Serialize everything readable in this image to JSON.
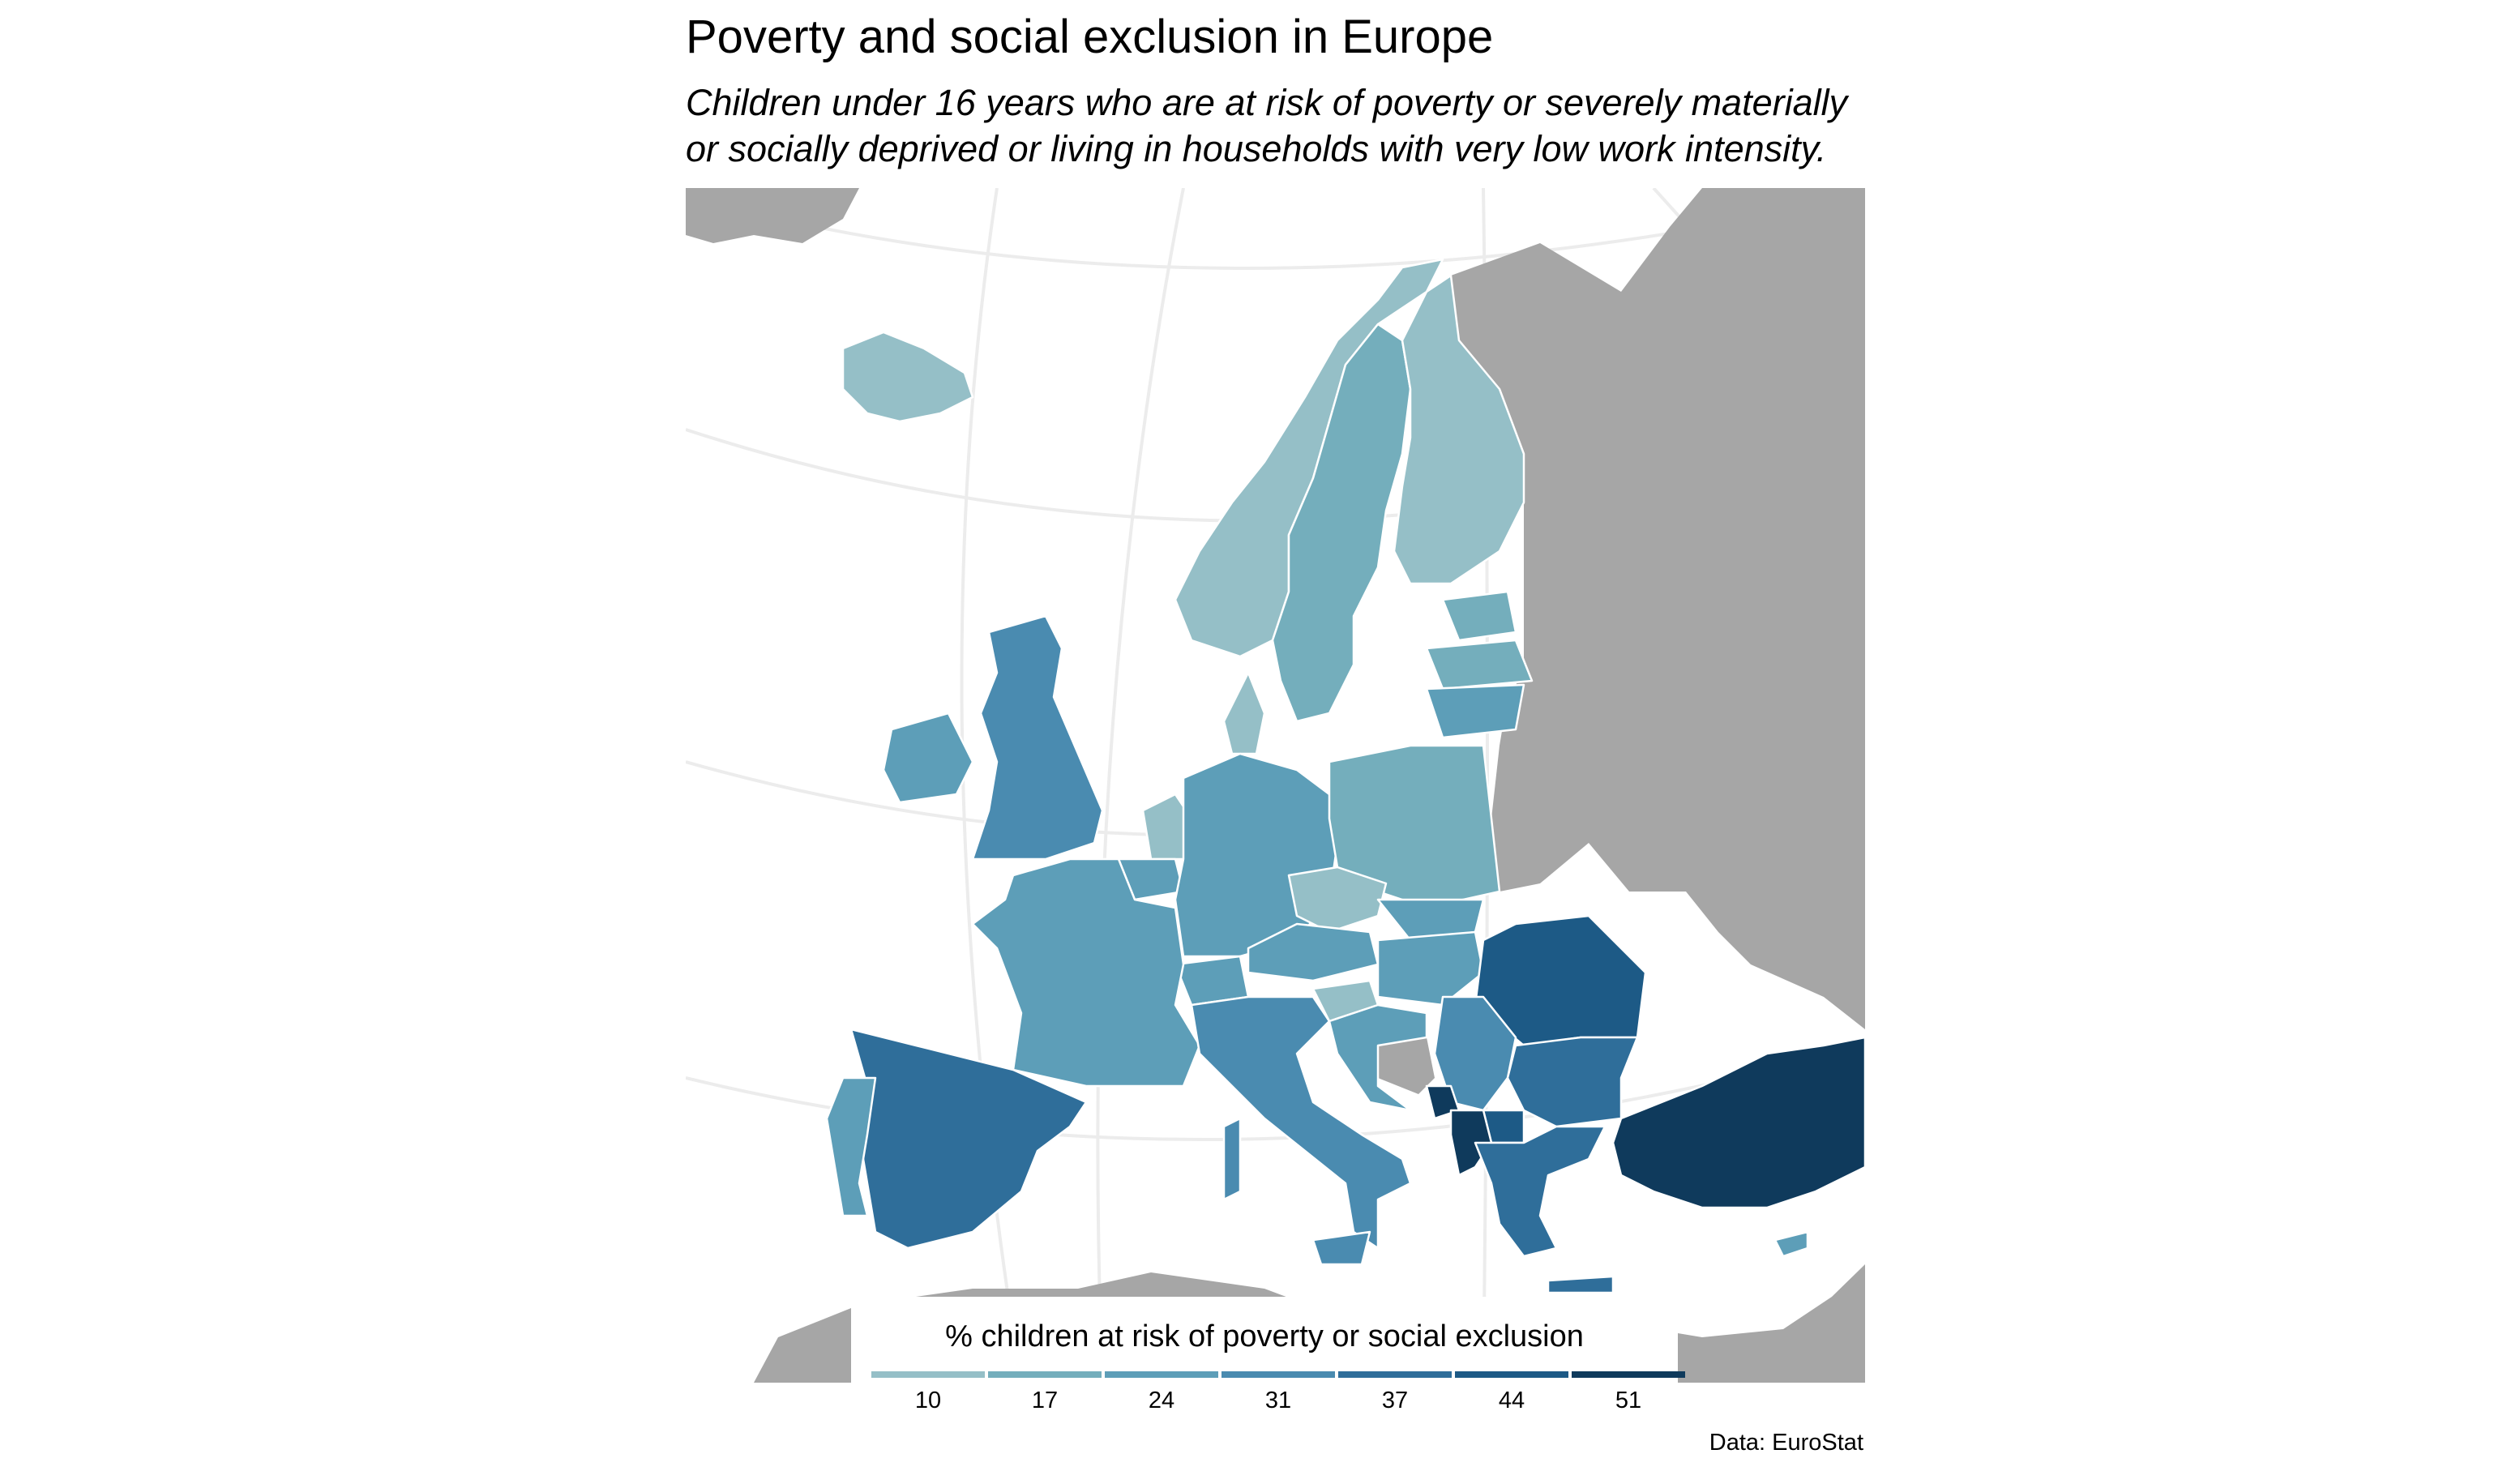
{
  "title": "Poverty and social exclusion in Europe",
  "subtitle_line1": "Children under 16 years who are at risk of poverty or severely materially",
  "subtitle_line2": "or socially deprived or living in households with very low work intensity.",
  "legend": {
    "title": "% children at risk of poverty or social exclusion",
    "ticks": [
      "10",
      "17",
      "24",
      "31",
      "37",
      "44",
      "51"
    ],
    "colors": [
      "#95bfc7",
      "#74aebc",
      "#5d9eb8",
      "#4a8bb0",
      "#2f6e9a",
      "#1d5a86",
      "#0f3a5c"
    ]
  },
  "source": "Data: EuroStat",
  "palette": {
    "no_data": "#a6a6a6",
    "border": "#ffffff",
    "graticule": "#ececec",
    "background": "#ffffff"
  },
  "countries": [
    {
      "name": "Iceland",
      "level": 0
    },
    {
      "name": "Norway",
      "level": 0
    },
    {
      "name": "Sweden",
      "level": 1
    },
    {
      "name": "Finland",
      "level": 0
    },
    {
      "name": "Estonia",
      "level": 1
    },
    {
      "name": "Latvia",
      "level": 1
    },
    {
      "name": "Lithuania",
      "level": 2
    },
    {
      "name": "Denmark",
      "level": 0
    },
    {
      "name": "United Kingdom",
      "level": 3
    },
    {
      "name": "Ireland",
      "level": 2
    },
    {
      "name": "Netherlands",
      "level": 0
    },
    {
      "name": "Belgium",
      "level": 2
    },
    {
      "name": "Germany",
      "level": 2
    },
    {
      "name": "Poland",
      "level": 1
    },
    {
      "name": "Czechia",
      "level": 0
    },
    {
      "name": "Slovakia",
      "level": 2
    },
    {
      "name": "Austria",
      "level": 2
    },
    {
      "name": "Switzerland",
      "level": 2
    },
    {
      "name": "Hungary",
      "level": 2
    },
    {
      "name": "Slovenia",
      "level": 0
    },
    {
      "name": "Croatia",
      "level": 2
    },
    {
      "name": "France",
      "level": 2
    },
    {
      "name": "Spain",
      "level": 4
    },
    {
      "name": "Portugal",
      "level": 2
    },
    {
      "name": "Italy",
      "level": 3
    },
    {
      "name": "Romania",
      "level": 5
    },
    {
      "name": "Serbia",
      "level": 3
    },
    {
      "name": "Bulgaria",
      "level": 4
    },
    {
      "name": "North Macedonia",
      "level": 5
    },
    {
      "name": "Montenegro",
      "level": 6
    },
    {
      "name": "Albania",
      "level": 6
    },
    {
      "name": "Greece",
      "level": 4
    },
    {
      "name": "Turkey",
      "level": 6
    },
    {
      "name": "Cyprus",
      "level": 2
    }
  ],
  "no_data_regions": [
    "Russia",
    "Belarus",
    "Ukraine",
    "Moldova",
    "Bosnia and Herzegovina",
    "North Africa",
    "Middle East"
  ]
}
